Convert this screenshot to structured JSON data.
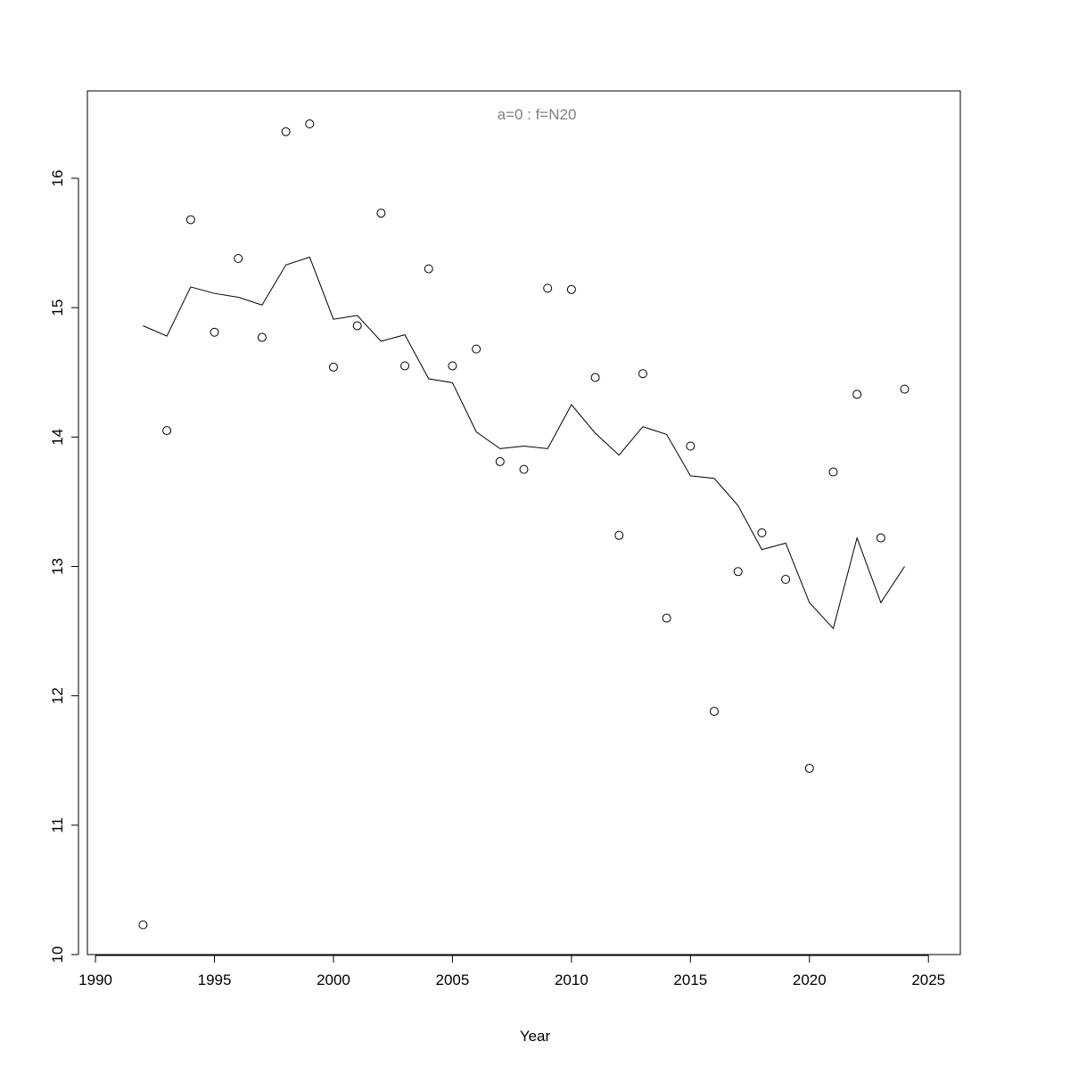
{
  "chart_data": {
    "type": "scatter-line",
    "title": "a=0  :  f=N20",
    "x_label": "Year",
    "x": [
      1992,
      1993,
      1994,
      1995,
      1996,
      1997,
      1998,
      1999,
      2000,
      2001,
      2002,
      2003,
      2004,
      2005,
      2006,
      2007,
      2008,
      2009,
      2010,
      2011,
      2012,
      2013,
      2014,
      2015,
      2016,
      2017,
      2018,
      2019,
      2020,
      2021,
      2022,
      2023,
      2024
    ],
    "series": [
      {
        "mode": "points",
        "color": "#000000",
        "values": [
          10.23,
          14.05,
          15.68,
          14.81,
          15.38,
          14.77,
          16.36,
          16.42,
          14.54,
          14.86,
          15.73,
          14.55,
          15.3,
          14.55,
          14.68,
          13.81,
          13.75,
          15.15,
          15.14,
          14.46,
          13.24,
          14.49,
          12.6,
          13.93,
          11.88,
          12.96,
          13.26,
          12.9,
          11.44,
          13.73,
          14.33,
          13.22,
          14.37
        ]
      },
      {
        "mode": "line",
        "color": "#000000",
        "values": [
          14.86,
          14.78,
          15.16,
          15.11,
          15.08,
          15.02,
          15.33,
          15.39,
          14.91,
          14.94,
          14.74,
          14.79,
          14.45,
          14.42,
          14.04,
          13.91,
          13.93,
          13.91,
          14.25,
          14.03,
          13.86,
          14.08,
          14.02,
          13.7,
          13.68,
          13.47,
          13.13,
          13.18,
          12.72,
          12.52,
          13.22,
          12.72,
          13.0
        ]
      }
    ],
    "xlim": [
      1989.66,
      2026.34
    ],
    "xticks": [
      1990,
      1995,
      2000,
      2005,
      2010,
      2015,
      2020,
      2025
    ],
    "ylim": [
      10,
      16.675
    ],
    "yticks": [
      10,
      11,
      12,
      13,
      14,
      15,
      16
    ],
    "title_color": "#808080"
  }
}
